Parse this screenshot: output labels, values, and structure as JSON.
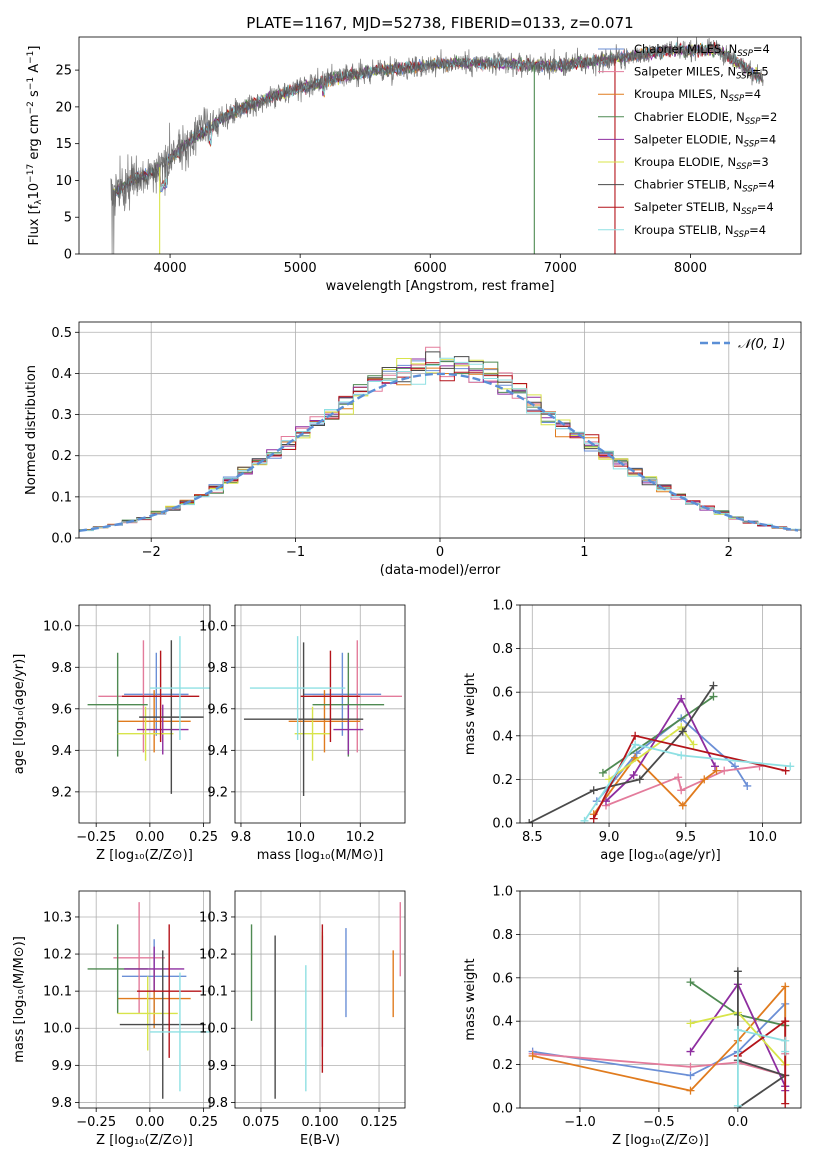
{
  "colors": {
    "series": [
      "#6b8fd6",
      "#e37b9b",
      "#e07b1e",
      "#4f8a52",
      "#8e2ea0",
      "#d8e44a",
      "#4a4a4a",
      "#b4141a",
      "#8fe0e3"
    ],
    "spectrum_main": "#777777",
    "gauss": "#5b8fd6",
    "grid": "#b0b0b0"
  },
  "chart_data": [
    {
      "id": "spectrum",
      "type": "line",
      "title": "PLATE=1167, MJD=52738, FIBERID=0133, z=0.071",
      "xlabel": "wavelength [Angstrom, rest frame]",
      "ylabel": "Flux [f",
      "ylabel_parts": [
        "Flux [f",
        "λ",
        "10",
        "−17",
        " erg cm",
        "−2",
        " s",
        "−1",
        " A",
        "−1",
        "]"
      ],
      "xlim": [
        3300,
        8850
      ],
      "ylim": [
        0,
        29.5
      ],
      "xticks": [
        4000,
        5000,
        6000,
        7000,
        8000
      ],
      "yticks": [
        0,
        5,
        10,
        15,
        20,
        25
      ],
      "continuum_knots": [
        [
          3560,
          8
        ],
        [
          3700,
          10
        ],
        [
          3900,
          11.5
        ],
        [
          4000,
          13
        ],
        [
          4200,
          16
        ],
        [
          4500,
          19.5
        ],
        [
          4800,
          21.5
        ],
        [
          5000,
          22.5
        ],
        [
          5300,
          24
        ],
        [
          5600,
          25
        ],
        [
          5900,
          25.5
        ],
        [
          6200,
          26
        ],
        [
          6600,
          25.8
        ],
        [
          7000,
          25.6
        ],
        [
          7400,
          26.5
        ],
        [
          7800,
          27.6
        ],
        [
          8200,
          27.8
        ],
        [
          8550,
          24
        ]
      ],
      "legend": [
        {
          "label": "Chabrier MILES, N",
          "sub": "SSP",
          "value": "=4"
        },
        {
          "label": "Salpeter MILES, N",
          "sub": "SSP",
          "value": "=5"
        },
        {
          "label": "Kroupa MILES, N",
          "sub": "SSP",
          "value": "=4"
        },
        {
          "label": "Chabrier ELODIE, N",
          "sub": "SSP",
          "value": "=2"
        },
        {
          "label": "Salpeter ELODIE, N",
          "sub": "SSP",
          "value": "=4"
        },
        {
          "label": "Kroupa ELODIE, N",
          "sub": "SSP",
          "value": "=3"
        },
        {
          "label": "Chabrier STELIB, N",
          "sub": "SSP",
          "value": "=4"
        },
        {
          "label": "Salpeter STELIB, N",
          "sub": "SSP",
          "value": "=4"
        },
        {
          "label": "Kroupa STELIB, N",
          "sub": "SSP",
          "value": "=4"
        }
      ],
      "legend_loc": "right"
    },
    {
      "id": "residuals",
      "type": "line",
      "xlabel": "(data-model)/error",
      "ylabel": "Normed distribution",
      "xlim": [
        -2.5,
        2.5
      ],
      "ylim": [
        0,
        0.525
      ],
      "xticks": [
        -2,
        -1,
        0,
        1,
        2
      ],
      "yticks": [
        0.0,
        0.1,
        0.2,
        0.3,
        0.4,
        0.5
      ],
      "bin_width": 0.1,
      "legend": [
        {
          "label": "𝒩(0, 1)"
        }
      ],
      "legend_loc": "top-right"
    },
    {
      "id": "age_vs_Z",
      "type": "scatter",
      "xlabel": "Z [log₁₀(Z/Z⊙)]",
      "ylabel": "age  [log₁₀(age/yr)]",
      "xlim": [
        -0.33,
        0.28
      ],
      "ylim": [
        9.05,
        10.1
      ],
      "xticks": [
        -0.25,
        0.0,
        0.25
      ],
      "xtick_labels": [
        "−0.25",
        "0.00",
        "0.25"
      ],
      "yticks": [
        9.2,
        9.4,
        9.6,
        9.8,
        10.0
      ],
      "points": [
        {
          "x": 0.03,
          "y": 9.67,
          "xerr": 0.15,
          "yerr": 0.2
        },
        {
          "x": -0.03,
          "y": 9.66,
          "xerr": 0.21,
          "yerr": 0.27
        },
        {
          "x": 0.02,
          "y": 9.54,
          "xerr": 0.17,
          "yerr": 0.15
        },
        {
          "x": -0.15,
          "y": 9.62,
          "xerr": 0.14,
          "yerr": 0.25
        },
        {
          "x": 0.06,
          "y": 9.5,
          "xerr": 0.12,
          "yerr": 0.12
        },
        {
          "x": -0.02,
          "y": 9.48,
          "xerr": 0.13,
          "yerr": 0.13
        },
        {
          "x": 0.1,
          "y": 9.56,
          "xerr": 0.15,
          "yerr": 0.37
        },
        {
          "x": 0.05,
          "y": 9.66,
          "xerr": 0.18,
          "yerr": 0.22
        },
        {
          "x": 0.14,
          "y": 9.7,
          "xerr": 0.14,
          "yerr": 0.25
        }
      ]
    },
    {
      "id": "age_vs_mass",
      "type": "scatter",
      "xlabel": "mass [log₁₀(M/M⊙)]",
      "xlim": [
        9.78,
        10.35
      ],
      "ylim": [
        9.05,
        10.1
      ],
      "xticks": [
        9.8,
        10.0,
        10.2
      ],
      "yticks": [
        9.2,
        9.4,
        9.6,
        9.8,
        10.0
      ],
      "points": [
        {
          "x": 10.14,
          "y": 9.67,
          "xerr": 0.13,
          "yerr": 0.2
        },
        {
          "x": 10.19,
          "y": 9.66,
          "xerr": 0.15,
          "yerr": 0.27
        },
        {
          "x": 10.08,
          "y": 9.54,
          "xerr": 0.12,
          "yerr": 0.15
        },
        {
          "x": 10.16,
          "y": 9.62,
          "xerr": 0.12,
          "yerr": 0.25
        },
        {
          "x": 10.16,
          "y": 9.5,
          "xerr": 0.05,
          "yerr": 0.12
        },
        {
          "x": 10.04,
          "y": 9.48,
          "xerr": 0.06,
          "yerr": 0.13
        },
        {
          "x": 10.01,
          "y": 9.55,
          "xerr": 0.2,
          "yerr": 0.37
        },
        {
          "x": 10.1,
          "y": 9.66,
          "xerr": 0.1,
          "yerr": 0.22
        },
        {
          "x": 9.99,
          "y": 9.7,
          "xerr": 0.16,
          "yerr": 0.25
        }
      ]
    },
    {
      "id": "weight_vs_age",
      "type": "line",
      "xlabel": "age  [log₁₀(age/yr)]",
      "ylabel": "mass weight",
      "xlim": [
        8.42,
        10.25
      ],
      "ylim": [
        0,
        1.0
      ],
      "xticks": [
        8.5,
        9.0,
        9.5,
        10.0
      ],
      "yticks": [
        0.0,
        0.2,
        0.4,
        0.6,
        0.8,
        1.0
      ],
      "series": [
        {
          "points": [
            [
              8.92,
              0.1
            ],
            [
              9.18,
              0.32
            ],
            [
              9.47,
              0.48
            ],
            [
              9.82,
              0.26
            ],
            [
              9.9,
              0.17
            ]
          ]
        },
        {
          "points": [
            [
              8.98,
              0.08
            ],
            [
              9.45,
              0.21
            ],
            [
              9.47,
              0.15
            ],
            [
              9.75,
              0.24
            ],
            [
              9.98,
              0.26
            ]
          ]
        },
        {
          "points": [
            [
              8.9,
              0.04
            ],
            [
              9.17,
              0.3
            ],
            [
              9.48,
              0.08
            ],
            [
              9.62,
              0.2
            ],
            [
              9.7,
              0.24
            ]
          ]
        },
        {
          "points": [
            [
              8.96,
              0.23
            ],
            [
              9.68,
              0.58
            ]
          ]
        },
        {
          "points": [
            [
              8.98,
              0.1
            ],
            [
              9.16,
              0.22
            ],
            [
              9.47,
              0.57
            ],
            [
              9.69,
              0.26
            ]
          ]
        },
        {
          "points": [
            [
              9.0,
              0.2
            ],
            [
              9.47,
              0.44
            ],
            [
              9.55,
              0.36
            ]
          ]
        },
        {
          "points": [
            [
              8.48,
              0.0
            ],
            [
              8.9,
              0.15
            ],
            [
              9.2,
              0.2
            ],
            [
              9.48,
              0.42
            ],
            [
              9.68,
              0.63
            ]
          ]
        },
        {
          "points": [
            [
              8.9,
              0.02
            ],
            [
              9.17,
              0.4
            ],
            [
              10.15,
              0.24
            ]
          ]
        },
        {
          "points": [
            [
              8.84,
              0.01
            ],
            [
              9.17,
              0.36
            ],
            [
              9.47,
              0.31
            ],
            [
              10.18,
              0.26
            ]
          ]
        }
      ]
    },
    {
      "id": "mass_vs_Z",
      "type": "scatter",
      "xlabel": "Z [log₁₀(Z/Z⊙)]",
      "ylabel": "mass [log₁₀(M/M⊙)]",
      "xlim": [
        -0.33,
        0.28
      ],
      "ylim": [
        9.785,
        10.37
      ],
      "xticks": [
        -0.25,
        0.0,
        0.25
      ],
      "xtick_labels": [
        "−0.25",
        "0.00",
        "0.25"
      ],
      "yticks": [
        9.8,
        9.9,
        10.0,
        10.1,
        10.2,
        10.3
      ],
      "points": [
        {
          "x": 0.02,
          "y": 10.14,
          "xerr": 0.15,
          "yerr": 0.1
        },
        {
          "x": -0.05,
          "y": 10.19,
          "xerr": 0.12,
          "yerr": 0.15
        },
        {
          "x": 0.02,
          "y": 10.08,
          "xerr": 0.17,
          "yerr": 0.08
        },
        {
          "x": -0.15,
          "y": 10.16,
          "xerr": 0.14,
          "yerr": 0.12
        },
        {
          "x": 0.02,
          "y": 10.16,
          "xerr": 0.14,
          "yerr": 0.06
        },
        {
          "x": -0.01,
          "y": 10.04,
          "xerr": 0.14,
          "yerr": 0.1
        },
        {
          "x": 0.06,
          "y": 10.01,
          "xerr": 0.2,
          "yerr": 0.2
        },
        {
          "x": 0.09,
          "y": 10.1,
          "xerr": 0.15,
          "yerr": 0.18
        },
        {
          "x": 0.14,
          "y": 9.99,
          "xerr": 0.14,
          "yerr": 0.16
        }
      ]
    },
    {
      "id": "mass_vs_ebv",
      "type": "scatter",
      "xlabel": "E(B-V)",
      "xlim": [
        0.064,
        0.136
      ],
      "ylim": [
        9.785,
        10.37
      ],
      "xticks": [
        0.075,
        0.1,
        0.125
      ],
      "xtick_labels": [
        "0.075",
        "0.100",
        "0.125"
      ],
      "yticks": [
        9.8,
        9.9,
        10.0,
        10.1,
        10.2,
        10.3
      ],
      "points": [
        {
          "x": 0.111,
          "y": 10.15,
          "yerr": 0.12
        },
        {
          "x": 0.134,
          "y": 10.24,
          "yerr": 0.1
        },
        {
          "x": 0.131,
          "y": 10.12,
          "yerr": 0.09
        },
        {
          "x": 0.071,
          "y": 10.15,
          "yerr": 0.13
        },
        {
          "x": 0.101,
          "y": 10.1,
          "yerr": 0.15
        },
        {
          "x": 0.101,
          "y": 10.12,
          "yerr": 0.14
        },
        {
          "x": 0.081,
          "y": 10.03,
          "yerr": 0.22
        },
        {
          "x": 0.101,
          "y": 10.08,
          "yerr": 0.2
        },
        {
          "x": 0.094,
          "y": 10.0,
          "yerr": 0.17
        }
      ]
    },
    {
      "id": "weight_vs_Z",
      "type": "line",
      "xlabel": "Z [log₁₀(Z/Z⊙)]",
      "ylabel": "mass weight",
      "xlim": [
        -1.38,
        0.4
      ],
      "ylim": [
        0,
        1.0
      ],
      "xticks": [
        -1.0,
        -0.5,
        0.0
      ],
      "xtick_labels": [
        "−1.0",
        "−0.5",
        "0.0"
      ],
      "yticks": [
        0.0,
        0.2,
        0.4,
        0.6,
        0.8,
        1.0
      ],
      "series": [
        {
          "points": [
            [
              -1.3,
              0.26
            ],
            [
              -0.3,
              0.15
            ],
            [
              0.0,
              0.26
            ],
            [
              0.3,
              0.48
            ],
            [
              0.3,
              0.1
            ]
          ]
        },
        {
          "points": [
            [
              -1.3,
              0.25
            ],
            [
              -0.3,
              0.19
            ],
            [
              0.0,
              0.21
            ],
            [
              0.3,
              0.15
            ],
            [
              0.3,
              0.25
            ]
          ]
        },
        {
          "points": [
            [
              -1.3,
              0.24
            ],
            [
              -0.3,
              0.08
            ],
            [
              0.0,
              0.31
            ],
            [
              0.3,
              0.56
            ],
            [
              0.3,
              0.2
            ]
          ]
        },
        {
          "points": [
            [
              -0.3,
              0.58
            ],
            [
              0.0,
              0.43
            ],
            [
              0.3,
              0.38
            ]
          ]
        },
        {
          "points": [
            [
              -0.3,
              0.26
            ],
            [
              0.0,
              0.57
            ],
            [
              0.3,
              0.1
            ],
            [
              0.3,
              0.08
            ]
          ]
        },
        {
          "points": [
            [
              -0.3,
              0.39
            ],
            [
              0.0,
              0.44
            ],
            [
              0.3,
              0.2
            ]
          ]
        },
        {
          "points": [
            [
              0.0,
              0.0
            ],
            [
              0.3,
              0.15
            ],
            [
              0.0,
              0.22
            ],
            [
              0.0,
              0.63
            ]
          ]
        },
        {
          "points": [
            [
              0.0,
              0.24
            ],
            [
              0.3,
              0.4
            ],
            [
              0.3,
              0.02
            ]
          ]
        },
        {
          "points": [
            [
              0.0,
              0.01
            ],
            [
              0.0,
              0.36
            ],
            [
              0.3,
              0.31
            ],
            [
              0.3,
              0.26
            ]
          ]
        }
      ]
    }
  ]
}
